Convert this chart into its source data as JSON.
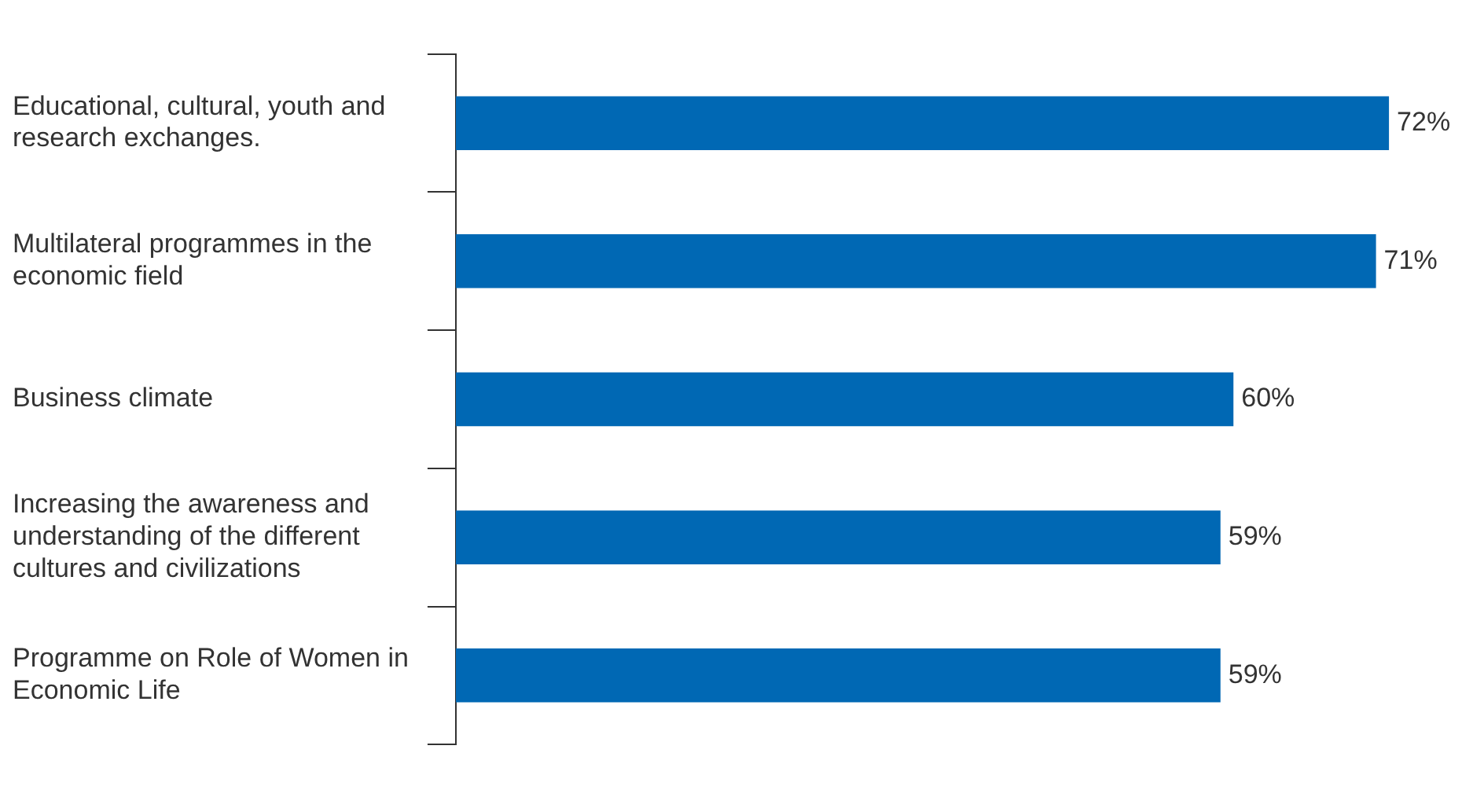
{
  "chart_data": {
    "type": "bar",
    "orientation": "horizontal",
    "categories": [
      "Educational, cultural, youth and research exchanges.",
      "Multilateral programmes in the economic field",
      "Business climate",
      "Increasing the awareness and understanding of the different cultures and civilizations",
      "Programme on Role of Women in Economic Life"
    ],
    "values": [
      72,
      71,
      60,
      59,
      59
    ],
    "value_labels": [
      "72%",
      "71%",
      "60%",
      "59%",
      "59%"
    ],
    "color": "#0068b4",
    "grid": false,
    "legend": false
  }
}
